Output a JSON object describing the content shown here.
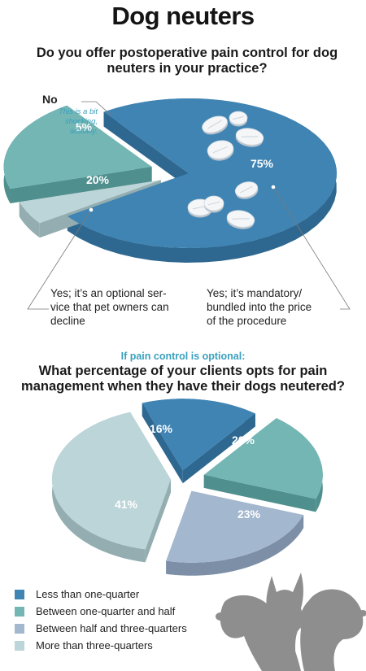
{
  "title": "Dog neuters",
  "chart1": {
    "question": "Do you offer postoperative pain control for dog neuters in your practice?",
    "no_label": "No",
    "no_comment": "This is a bit shocking, actually.",
    "yes_optional_label": "Yes; it’s an optional service that pet owners can decline",
    "yes_optional_lines": [
      "Yes; it’s an optional ser-",
      "vice that pet owners can",
      "decline"
    ],
    "yes_mandatory_label": "Yes; it’s mandatory/ bundled into the price of the procedure",
    "yes_mandatory_lines": [
      "Yes; it’s mandatory/",
      "bundled into the price",
      "of the procedure"
    ]
  },
  "chart2": {
    "sub_label": "If pain control is optional:",
    "question": "What percentage of your clients opts for pain management when they have their dogs neutered?"
  },
  "chart_data": [
    {
      "type": "pie",
      "title": "Do you offer postoperative pain control for dog neuters in your practice?",
      "categories": [
        "Yes; it’s mandatory/ bundled into the price of the procedure",
        "No",
        "Yes; it’s an optional service that pet owners can decline"
      ],
      "values": [
        75,
        5,
        20
      ],
      "labels": [
        "75%",
        "5%",
        "20%"
      ],
      "colors": [
        "#3f84b3",
        "#bcd5d8",
        "#73b6b4"
      ],
      "side_colors": [
        "#2e6890",
        "#93adb1",
        "#4f8f8d"
      ]
    },
    {
      "type": "pie",
      "title": "What percentage of your clients opts for pain management when they have their dogs neutered?",
      "categories": [
        "Less than one-quarter",
        "Between one-quarter and half",
        "Between half and three-quarters",
        "More than three-quarters"
      ],
      "values": [
        16,
        20,
        23,
        41
      ],
      "labels": [
        "16%",
        "20%",
        "23%",
        "41%"
      ],
      "colors": [
        "#3f84b3",
        "#73b6b4",
        "#a3b7cf",
        "#bcd5d8"
      ],
      "side_colors": [
        "#2e6890",
        "#4f8f8d",
        "#7c8fa7",
        "#93adb1"
      ]
    }
  ],
  "legend": [
    {
      "label": "Less than one-quarter",
      "color": "#3f84b3"
    },
    {
      "label": "Between one-quarter and half",
      "color": "#73b6b4"
    },
    {
      "label": "Between half and three-quarters",
      "color": "#a3b7cf"
    },
    {
      "label": "More than three-quarters",
      "color": "#bcd5d8"
    }
  ],
  "decoration": {
    "pills_icon": "pill-tablets-icon",
    "dogs_icon": "dog-silhouettes-icon",
    "dogs_color": "#8e8e8e"
  }
}
